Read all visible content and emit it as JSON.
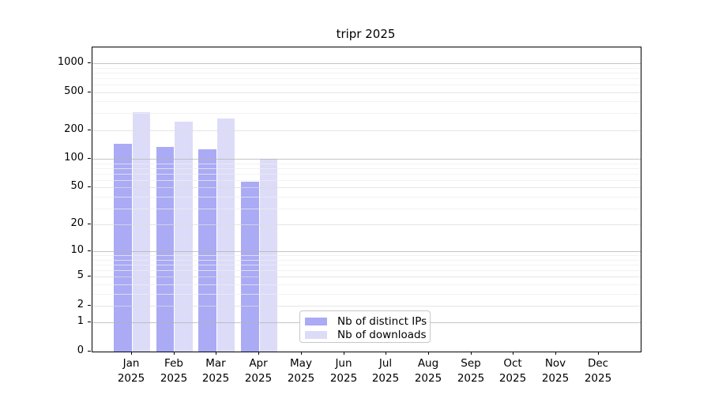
{
  "title": "tripr 2025",
  "colors": {
    "distinct_ips": "#aaaaf5",
    "downloads": "#dcdcf9",
    "grid_decade": "#b2b2b2",
    "grid_sub": "#dcdcdc",
    "grid_minor": "#ededed",
    "axis": "#000000",
    "background": "#ffffff"
  },
  "legend": {
    "items": [
      {
        "label": "Nb of distinct IPs",
        "color_key": "distinct_ips"
      },
      {
        "label": "Nb of downloads",
        "color_key": "downloads"
      }
    ]
  },
  "chart_data": {
    "type": "bar",
    "title": "tripr 2025",
    "xlabel": "",
    "ylabel": "",
    "scale": "log10(1+y)",
    "ylim": [
      0,
      1460
    ],
    "grid": "on",
    "legend_position": "bottom-center-inside",
    "year": "2025",
    "categories": [
      "Jan",
      "Feb",
      "Mar",
      "Apr",
      "May",
      "Jun",
      "Jul",
      "Aug",
      "Sep",
      "Oct",
      "Nov",
      "Dec"
    ],
    "y_ticks": [
      0,
      1,
      2,
      5,
      10,
      20,
      50,
      100,
      200,
      500,
      1000
    ],
    "y_decade_gridlines": [
      1,
      10,
      100,
      1000
    ],
    "y_minor_gridlines": [
      3,
      4,
      6,
      7,
      8,
      9,
      30,
      40,
      60,
      70,
      80,
      90,
      300,
      400,
      600,
      700,
      800,
      900
    ],
    "series": [
      {
        "name": "Nb of distinct IPs",
        "values": [
          145,
          133,
          125,
          57,
          null,
          null,
          null,
          null,
          null,
          null,
          null,
          null
        ]
      },
      {
        "name": "Nb of downloads",
        "values": [
          310,
          245,
          265,
          100,
          null,
          null,
          null,
          null,
          null,
          null,
          null,
          null
        ]
      }
    ]
  }
}
